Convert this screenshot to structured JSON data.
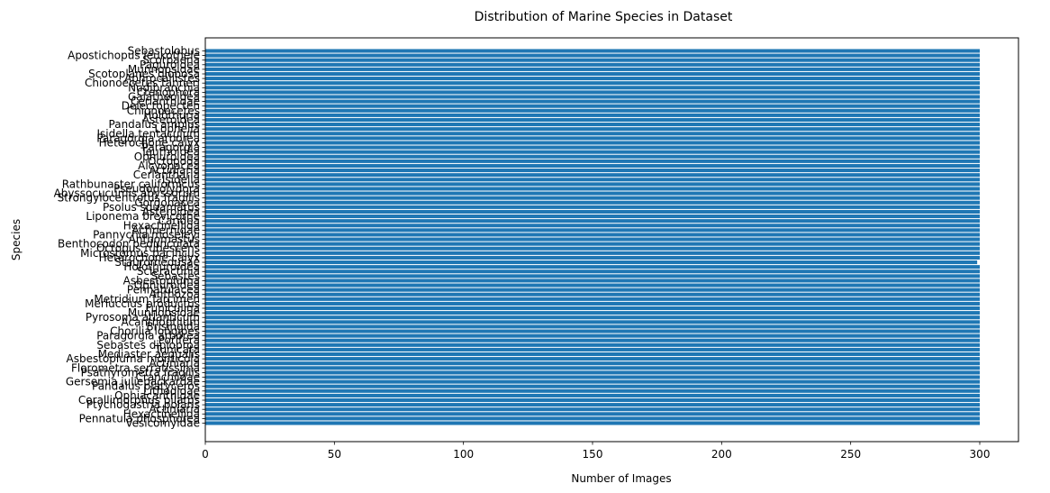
{
  "chart_data": {
    "type": "bar",
    "orientation": "horizontal",
    "title": "Distribution of Marine Species in Dataset",
    "xlabel": "Number of Images",
    "ylabel": "Species",
    "xlim": [
      0,
      315
    ],
    "xticks": [
      0,
      50,
      100,
      150,
      200,
      250,
      300
    ],
    "grid": false,
    "bar_color": "#1f77b4",
    "categories": [
      "Vesicomyidae",
      "Pennatula phosphorea",
      "Hexactinellida",
      "Actiniaria",
      "Ptychogastria polaris",
      "Corallimorphus pilatus",
      "Ophiacanthidae",
      "Lithodidae",
      "Pandalus platyceros",
      "Gersemia juliepackardae",
      "Cranchiidae",
      "Psathyrometra fragilis",
      "Florometra serratissima",
      "Actiniaria",
      "Asbestopluma monticola",
      "Mediaster aequalis",
      "Tunicata",
      "Sebastes diploproa",
      "Porifera",
      "Paragorgia arborea",
      "Chorilia longipes",
      "Brisingida",
      "Acanthoptilum",
      "Pyrosoma atlanticum",
      "Munnopsidae",
      "Funiculina",
      "Merluccius productus",
      "Metridium farcimen",
      "Anthozoa",
      "Pennatulacea",
      "Ophiuroidea",
      "Asbestopluma",
      "Sebastes",
      "Scleractinia",
      "Holothuroidea",
      "Stauromedusae",
      "Heterochone calyx",
      "Microstomus pacificus",
      "Octopus rubescens",
      "Benthocodon pedunculata",
      "Anthomastus",
      "Pannychia moseleyi",
      "Actinernidae",
      "Hexactinellida",
      "Caridea",
      "Liponema brevicorne",
      "Asteroidea",
      "Psolus squamatus",
      "Gorgonacea",
      "Strongylocentrotus fragilis",
      "Abyssocucumis abyssorum",
      "Pseudopolydora",
      "Rathbunaster californicus",
      "Isidella",
      "Ceriantharia",
      "Actiniaria",
      "Alcyonacea",
      "Octopoda",
      "Ophiuroidea",
      "Teuthoidea",
      "Paragorgia",
      "Heterochone calyx",
      "Paragorgia arborea",
      "Isidella tentaculum",
      "Lophelia",
      "Pandalus amplus",
      "Asteroidea",
      "Holothuria",
      "Chionoecetes",
      "Delectopecten",
      "Cerianthidae",
      "Galatheoidea",
      "Ctenophora",
      "Nudibranchia",
      "Chionoecetes tanneri",
      "Aphrocallistes",
      "Scotoplanes globosa",
      "Munnopsidae",
      "Paguroidea",
      "Scorpaena",
      "Apostichopus leukothele",
      "Sebastolobus"
    ],
    "values": [
      300,
      300,
      300,
      300,
      300,
      300,
      300,
      300,
      300,
      300,
      300,
      300,
      300,
      300,
      300,
      300,
      300,
      300,
      300,
      300,
      300,
      300,
      300,
      300,
      300,
      300,
      300,
      300,
      300,
      300,
      300,
      300,
      300,
      300,
      300,
      299,
      300,
      300,
      300,
      300,
      300,
      300,
      300,
      300,
      300,
      300,
      300,
      300,
      300,
      300,
      300,
      300,
      300,
      300,
      300,
      300,
      300,
      300,
      300,
      300,
      300,
      300,
      300,
      300,
      300,
      300,
      300,
      300,
      300,
      300,
      300,
      300,
      300,
      300,
      300,
      300,
      300,
      300,
      300,
      300,
      300,
      300
    ]
  }
}
